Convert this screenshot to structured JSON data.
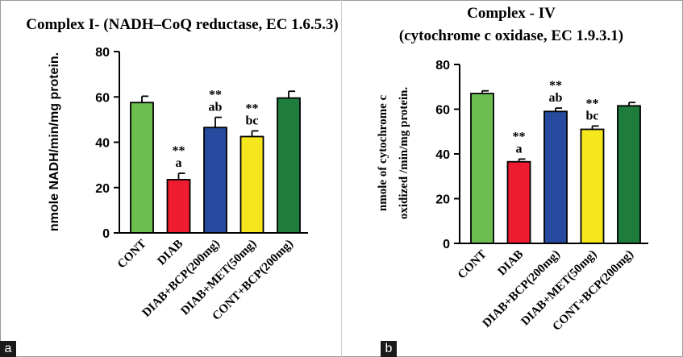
{
  "panels": [
    {
      "label": "a",
      "chart_data": {
        "type": "bar",
        "title_lines": [
          "Complex I- (NADH–CoQ reductase, EC 1.6.5.3)"
        ],
        "ylabel_lines": [
          "nmole NADH/min/mg protein."
        ],
        "xlabel": "",
        "ylim": [
          0,
          80
        ],
        "yticks": [
          0,
          20,
          40,
          60,
          80
        ],
        "categories": [
          "CONT",
          "DIAB",
          "DIAB+BCP(200mg)",
          "DIAB+MET(50mg)",
          "CONT+BCP(200mg)"
        ],
        "values": [
          57.5,
          23.5,
          46.5,
          42.5,
          59.5
        ],
        "errors": [
          2.8,
          2.8,
          4.5,
          2.5,
          3.0
        ],
        "colors": [
          "#6cbf4f",
          "#ee1c2e",
          "#264a9e",
          "#f5e61e",
          "#1e7d3c"
        ],
        "annotations": [
          [],
          [
            "**",
            "a"
          ],
          [
            "**",
            "ab"
          ],
          [
            "**",
            "bc"
          ],
          []
        ]
      }
    },
    {
      "label": "b",
      "chart_data": {
        "type": "bar",
        "title_lines": [
          "Complex - IV",
          "(cytochrome c oxidase, EC 1.9.3.1)"
        ],
        "ylabel_lines": [
          "nmole of cytochrome c",
          "oxidized /min/mg protein."
        ],
        "xlabel": "",
        "ylim": [
          0,
          80
        ],
        "yticks": [
          0,
          20,
          40,
          60,
          80
        ],
        "categories": [
          "CONT",
          "DIAB",
          "DIAB+BCP(200mg)",
          "DIAB+MET(50mg)",
          "CONT+BCP(200mg)"
        ],
        "values": [
          67,
          36.5,
          59,
          51,
          61.5
        ],
        "errors": [
          1.2,
          1.2,
          1.5,
          1.5,
          1.5
        ],
        "colors": [
          "#6cbf4f",
          "#ee1c2e",
          "#264a9e",
          "#f5e61e",
          "#1e7d3c"
        ],
        "annotations": [
          [],
          [
            "**",
            "a"
          ],
          [
            "**",
            "ab"
          ],
          [
            "**",
            "bc"
          ],
          []
        ]
      }
    }
  ]
}
